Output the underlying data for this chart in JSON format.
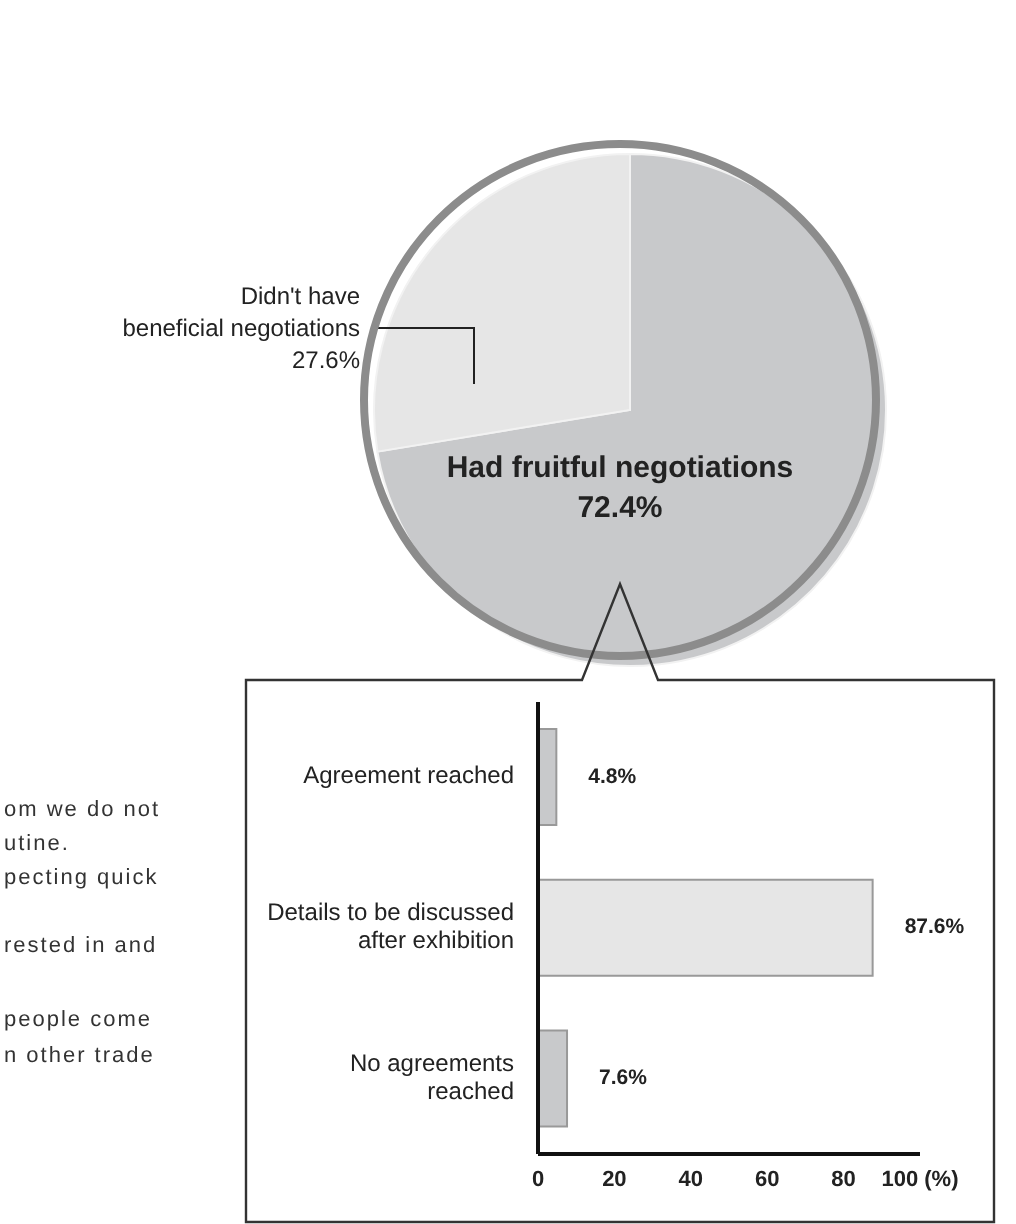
{
  "chart_data": [
    {
      "type": "pie",
      "categories": [
        "Had fruitful negotiations",
        "Didn't have beneficial negotiations"
      ],
      "values": [
        72.4,
        27.6
      ],
      "colors": [
        "#c8c9cb",
        "#e6e6e6"
      ],
      "value_labels": [
        "72.4%",
        "27.6%"
      ],
      "legend": false
    },
    {
      "type": "bar",
      "orientation": "horizontal",
      "categories": [
        "Agreement reached",
        "Details to be discussed after exhibition",
        "No agreements reached"
      ],
      "values": [
        4.8,
        87.6,
        7.6
      ],
      "colors": [
        "#c8c9cb",
        "#e6e6e6",
        "#c8c9cb"
      ],
      "value_labels": [
        "4.8%",
        "87.6%",
        "7.6%"
      ],
      "xlim": [
        0,
        100
      ],
      "xticks": [
        0,
        20,
        40,
        60,
        80,
        {
          "value": 100,
          "label": "100 (%)"
        }
      ],
      "grid": false,
      "annotations": [
        "om we do not",
        "utine.",
        "pecting quick",
        "rested in and",
        "people come",
        "n other trade"
      ]
    }
  ]
}
